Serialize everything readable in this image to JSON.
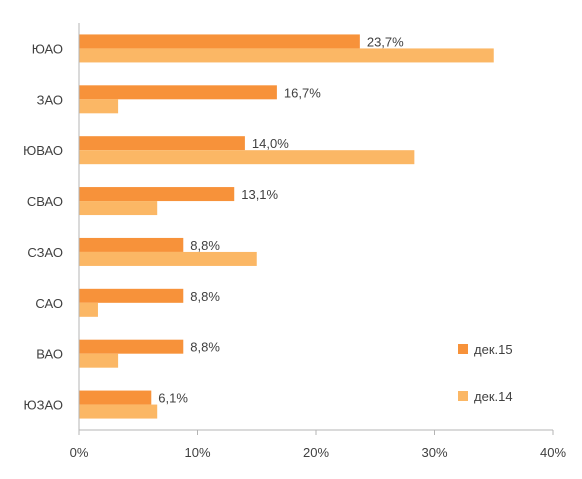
{
  "chart_data": {
    "type": "bar",
    "orientation": "horizontal",
    "categories": [
      "ЮАО",
      "ЗАО",
      "ЮВАО",
      "СВАО",
      "СЗАО",
      "САО",
      "ВАО",
      "ЮЗАО"
    ],
    "series": [
      {
        "name": "дек.15",
        "color": "#F7923A",
        "values": [
          23.7,
          16.7,
          14.0,
          13.1,
          8.8,
          8.8,
          8.8,
          6.1
        ],
        "labels": [
          "23,7%",
          "16,7%",
          "14,0%",
          "13,1%",
          "8,8%",
          "8,8%",
          "8,8%",
          "6,1%"
        ]
      },
      {
        "name": "дек.14",
        "color": "#FBB765",
        "values": [
          35.0,
          3.3,
          28.3,
          6.6,
          15.0,
          1.6,
          3.3,
          6.6
        ]
      }
    ],
    "xlim": [
      0,
      40
    ],
    "xticks": [
      0,
      10,
      20,
      30,
      40
    ],
    "xtick_labels": [
      "0%",
      "10%",
      "20%",
      "30%",
      "40%"
    ],
    "grid": false,
    "legend_position": "right"
  }
}
